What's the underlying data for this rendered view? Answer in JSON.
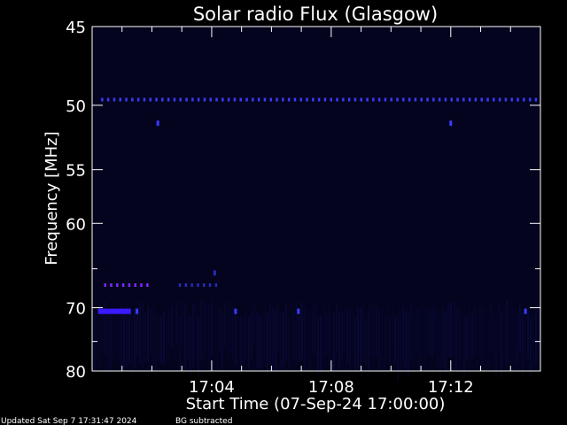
{
  "chart_data": {
    "type": "heatmap",
    "title": "Solar radio Flux (Glasgow)",
    "xlabel": "Start Time (07-Sep-24 17:00:00)",
    "ylabel": "Frequency [MHz]",
    "x_unit": "minutes after 17:00:00",
    "xlim": [
      0,
      15
    ],
    "ylim": [
      80,
      45
    ],
    "y_scale": "reciprocal",
    "x_ticks": [
      {
        "value": 4,
        "label": "17:04"
      },
      {
        "value": 8,
        "label": "17:08"
      },
      {
        "value": 12,
        "label": "17:12"
      }
    ],
    "y_ticks": [
      {
        "value": 45,
        "label": "45"
      },
      {
        "value": 50,
        "label": "50"
      },
      {
        "value": 55,
        "label": "55"
      },
      {
        "value": 60,
        "label": "60"
      },
      {
        "value": 70,
        "label": "70"
      },
      {
        "value": 80,
        "label": "80"
      }
    ],
    "y_minor_ticks": [
      65,
      75
    ],
    "background_color": "#04041e",
    "features": [
      {
        "kind": "dashed_line",
        "frequency": 49.6,
        "x_start": 0.3,
        "x_end": 15,
        "color": "#3a3aff"
      },
      {
        "kind": "dot",
        "frequency": 51.3,
        "x": 2.2,
        "color": "#3a3aff"
      },
      {
        "kind": "dot",
        "frequency": 51.3,
        "x": 12.0,
        "color": "#3a3aff"
      },
      {
        "kind": "dashed_line",
        "frequency": 67.0,
        "x_start": 0.4,
        "x_end": 1.9,
        "color": "#7a28ff"
      },
      {
        "kind": "dashed_line",
        "frequency": 67.0,
        "x_start": 2.9,
        "x_end": 4.3,
        "color": "#2a2ab8"
      },
      {
        "kind": "band",
        "frequency": 70.5,
        "x_start": 0.2,
        "x_end": 1.3,
        "color": "#3a1aff"
      },
      {
        "kind": "dot",
        "frequency": 70.5,
        "x": 1.5,
        "color": "#3a3aff"
      },
      {
        "kind": "dot",
        "frequency": 70.5,
        "x": 4.8,
        "color": "#3a3aff"
      },
      {
        "kind": "dot",
        "frequency": 70.5,
        "x": 6.9,
        "color": "#3a3aff"
      },
      {
        "kind": "dot",
        "frequency": 70.5,
        "x": 14.5,
        "color": "#3a3aff"
      },
      {
        "kind": "dot",
        "frequency": 65.5,
        "x": 4.1,
        "color": "#2a2ab8"
      }
    ]
  },
  "footer": {
    "updated": "Updated Sat Sep  7 17:31:47 2024",
    "note": "BG subtracted"
  },
  "colors": {
    "background": "#000000",
    "text": "#ffffff",
    "axis": "#ffffff"
  }
}
